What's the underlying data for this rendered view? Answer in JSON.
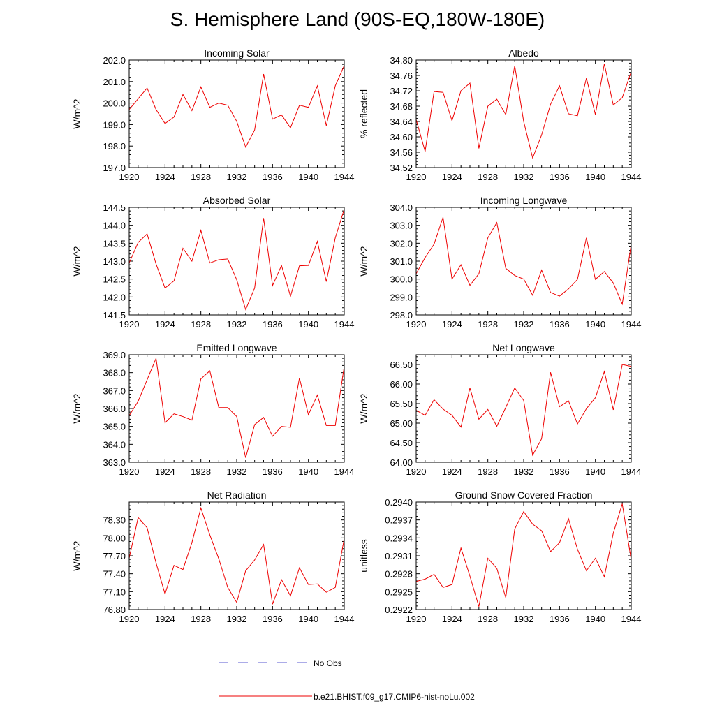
{
  "title": "S. Hemisphere Land (90S-EQ,180W-180E)",
  "legend": [
    {
      "label": "No Obs",
      "color": "#5a5ad2",
      "style": "dashed"
    },
    {
      "label": "b.e21.BHIST.f09_g17.CMIP6-hist-noLu.002",
      "color": "#ee0000",
      "style": "solid"
    }
  ],
  "chart_data": [
    {
      "type": "line",
      "title": "Incoming Solar",
      "ylabel": "W/m^2",
      "xlim": [
        1920,
        1944
      ],
      "ylim": [
        197.0,
        202.0
      ],
      "xticks": [
        "1920",
        "1924",
        "1928",
        "1932",
        "1936",
        "1940",
        "1944"
      ],
      "yticks": [
        "197.0",
        "198.0",
        "199.0",
        "200.0",
        "201.0",
        "202.0"
      ],
      "series": [
        {
          "color": "#ee0000",
          "x": [
            1920,
            1921,
            1922,
            1923,
            1924,
            1925,
            1926,
            1927,
            1928,
            1929,
            1930,
            1931,
            1932,
            1933,
            1934,
            1935,
            1936,
            1937,
            1938,
            1939,
            1940,
            1941,
            1942,
            1943,
            1944
          ],
          "values": [
            199.7,
            200.2,
            200.7,
            199.7,
            199.05,
            199.35,
            200.4,
            199.65,
            200.75,
            199.8,
            200.0,
            199.9,
            199.15,
            197.95,
            198.75,
            201.35,
            199.25,
            199.45,
            198.85,
            199.9,
            199.8,
            200.8,
            198.95,
            200.8,
            201.75
          ]
        }
      ]
    },
    {
      "type": "line",
      "title": "Albedo",
      "ylabel": "% reflected",
      "xlim": [
        1920,
        1944
      ],
      "ylim": [
        34.52,
        34.8
      ],
      "xticks": [
        "1920",
        "1924",
        "1928",
        "1932",
        "1936",
        "1940",
        "1944"
      ],
      "yticks": [
        "34.52",
        "34.56",
        "34.60",
        "34.64",
        "34.68",
        "34.72",
        "34.76",
        "34.80"
      ],
      "series": [
        {
          "color": "#ee0000",
          "x": [
            1920,
            1921,
            1922,
            1923,
            1924,
            1925,
            1926,
            1927,
            1928,
            1929,
            1930,
            1931,
            1932,
            1933,
            1934,
            1935,
            1936,
            1937,
            1938,
            1939,
            1940,
            1941,
            1942,
            1943,
            1944
          ],
          "values": [
            34.645,
            34.562,
            34.718,
            34.716,
            34.642,
            34.72,
            34.74,
            34.57,
            34.68,
            34.698,
            34.658,
            34.785,
            34.64,
            34.545,
            34.605,
            34.685,
            34.733,
            34.66,
            34.655,
            34.753,
            34.658,
            34.79,
            34.683,
            34.702,
            34.77
          ]
        }
      ]
    },
    {
      "type": "line",
      "title": "Absorbed Solar",
      "ylabel": "W/m^2",
      "xlim": [
        1920,
        1944
      ],
      "ylim": [
        141.5,
        144.5
      ],
      "xticks": [
        "1920",
        "1924",
        "1928",
        "1932",
        "1936",
        "1940",
        "1944"
      ],
      "yticks": [
        "141.5",
        "142.0",
        "142.5",
        "143.0",
        "143.5",
        "144.0",
        "144.5"
      ],
      "series": [
        {
          "color": "#ee0000",
          "x": [
            1920,
            1921,
            1922,
            1923,
            1924,
            1925,
            1926,
            1927,
            1928,
            1929,
            1930,
            1931,
            1932,
            1933,
            1934,
            1935,
            1936,
            1937,
            1938,
            1939,
            1940,
            1941,
            1942,
            1943,
            1944
          ],
          "values": [
            142.95,
            143.52,
            143.76,
            142.92,
            142.25,
            142.45,
            143.36,
            143.0,
            143.86,
            142.95,
            143.04,
            143.06,
            142.48,
            141.65,
            142.25,
            144.2,
            142.32,
            142.88,
            142.02,
            142.87,
            142.88,
            143.55,
            142.43,
            143.65,
            144.45
          ]
        }
      ]
    },
    {
      "type": "line",
      "title": "Incoming Longwave",
      "ylabel": "W/m^2",
      "xlim": [
        1920,
        1944
      ],
      "ylim": [
        298.0,
        304.0
      ],
      "xticks": [
        "1920",
        "1924",
        "1928",
        "1932",
        "1936",
        "1940",
        "1944"
      ],
      "yticks": [
        "298.0",
        "299.0",
        "300.0",
        "301.0",
        "302.0",
        "303.0",
        "304.0"
      ],
      "series": [
        {
          "color": "#ee0000",
          "x": [
            1920,
            1921,
            1922,
            1923,
            1924,
            1925,
            1926,
            1927,
            1928,
            1929,
            1930,
            1931,
            1932,
            1933,
            1934,
            1935,
            1936,
            1937,
            1938,
            1939,
            1940,
            1941,
            1942,
            1943,
            1944
          ],
          "values": [
            300.3,
            301.2,
            301.95,
            303.45,
            300.0,
            300.8,
            299.65,
            300.3,
            302.3,
            303.15,
            300.6,
            300.2,
            300.0,
            299.1,
            300.5,
            299.25,
            299.05,
            299.45,
            299.98,
            302.3,
            299.98,
            300.42,
            299.78,
            298.6,
            301.95
          ]
        }
      ]
    },
    {
      "type": "line",
      "title": "Emitted Longwave",
      "ylabel": "W/m^2",
      "xlim": [
        1920,
        1944
      ],
      "ylim": [
        363.0,
        369.0
      ],
      "xticks": [
        "1920",
        "1924",
        "1928",
        "1932",
        "1936",
        "1940",
        "1944"
      ],
      "yticks": [
        "363.0",
        "364.0",
        "365.0",
        "366.0",
        "367.0",
        "368.0",
        "369.0"
      ],
      "series": [
        {
          "color": "#ee0000",
          "x": [
            1920,
            1921,
            1922,
            1923,
            1924,
            1925,
            1926,
            1927,
            1928,
            1929,
            1930,
            1931,
            1932,
            1933,
            1934,
            1935,
            1936,
            1937,
            1938,
            1939,
            1940,
            1941,
            1942,
            1943,
            1944
          ],
          "values": [
            365.6,
            366.4,
            367.6,
            368.8,
            365.2,
            365.7,
            365.55,
            365.35,
            367.65,
            368.1,
            366.05,
            366.05,
            365.55,
            363.25,
            365.1,
            365.5,
            364.45,
            365.0,
            364.95,
            367.7,
            365.65,
            366.75,
            365.05,
            365.05,
            368.35
          ]
        }
      ]
    },
    {
      "type": "line",
      "title": "Net Longwave",
      "ylabel": "W/m^2",
      "xlim": [
        1920,
        1944
      ],
      "ylim": [
        64.0,
        66.75
      ],
      "xticks": [
        "1920",
        "1924",
        "1928",
        "1932",
        "1936",
        "1940",
        "1944"
      ],
      "yticks": [
        "64.00",
        "64.50",
        "65.00",
        "65.50",
        "66.00",
        "66.50"
      ],
      "series": [
        {
          "color": "#ee0000",
          "x": [
            1920,
            1921,
            1922,
            1923,
            1924,
            1925,
            1926,
            1927,
            1928,
            1929,
            1930,
            1931,
            1932,
            1933,
            1934,
            1935,
            1936,
            1937,
            1938,
            1939,
            1940,
            1941,
            1942,
            1943,
            1944
          ],
          "values": [
            65.33,
            65.2,
            65.6,
            65.36,
            65.2,
            64.9,
            65.9,
            65.1,
            65.35,
            64.92,
            65.4,
            65.9,
            65.58,
            64.18,
            64.6,
            66.3,
            65.42,
            65.57,
            64.98,
            65.37,
            65.65,
            66.32,
            65.34,
            66.5,
            66.45
          ]
        }
      ]
    },
    {
      "type": "line",
      "title": "Net Radiation",
      "ylabel": "W/m^2",
      "xlim": [
        1920,
        1944
      ],
      "ylim": [
        76.8,
        78.6
      ],
      "xticks": [
        "1920",
        "1924",
        "1928",
        "1932",
        "1936",
        "1940",
        "1944"
      ],
      "yticks": [
        "76.80",
        "77.10",
        "77.40",
        "77.70",
        "78.00",
        "78.30"
      ],
      "series": [
        {
          "color": "#ee0000",
          "x": [
            1920,
            1921,
            1922,
            1923,
            1924,
            1925,
            1926,
            1927,
            1928,
            1929,
            1930,
            1931,
            1932,
            1933,
            1934,
            1935,
            1936,
            1937,
            1938,
            1939,
            1940,
            1941,
            1942,
            1943,
            1944
          ],
          "values": [
            77.66,
            78.34,
            78.17,
            77.58,
            77.06,
            77.54,
            77.47,
            77.92,
            78.5,
            78.05,
            77.65,
            77.17,
            76.92,
            77.45,
            77.63,
            77.89,
            76.89,
            77.3,
            77.03,
            77.5,
            77.22,
            77.23,
            77.09,
            77.17,
            77.99
          ]
        }
      ]
    },
    {
      "type": "line",
      "title": "Ground Snow Covered Fraction",
      "ylabel": "unitless",
      "xlim": [
        1920,
        1944
      ],
      "ylim": [
        0.2922,
        0.294
      ],
      "xticks": [
        "1920",
        "1924",
        "1928",
        "1932",
        "1936",
        "1940",
        "1944"
      ],
      "yticks": [
        "0.2922",
        "0.2925",
        "0.2928",
        "0.2931",
        "0.2934",
        "0.2937",
        "0.2940"
      ],
      "series": [
        {
          "color": "#ee0000",
          "x": [
            1920,
            1921,
            1922,
            1923,
            1924,
            1925,
            1926,
            1927,
            1928,
            1929,
            1930,
            1931,
            1932,
            1933,
            1934,
            1935,
            1936,
            1937,
            1938,
            1939,
            1940,
            1941,
            1942,
            1943,
            1944
          ],
          "values": [
            0.29267,
            0.29271,
            0.29279,
            0.29257,
            0.29262,
            0.29323,
            0.29276,
            0.29225,
            0.29306,
            0.29289,
            0.2924,
            0.29355,
            0.29384,
            0.29363,
            0.29352,
            0.29317,
            0.29332,
            0.29372,
            0.29321,
            0.29285,
            0.29306,
            0.29275,
            0.29348,
            0.29397,
            0.29303
          ]
        }
      ]
    }
  ]
}
